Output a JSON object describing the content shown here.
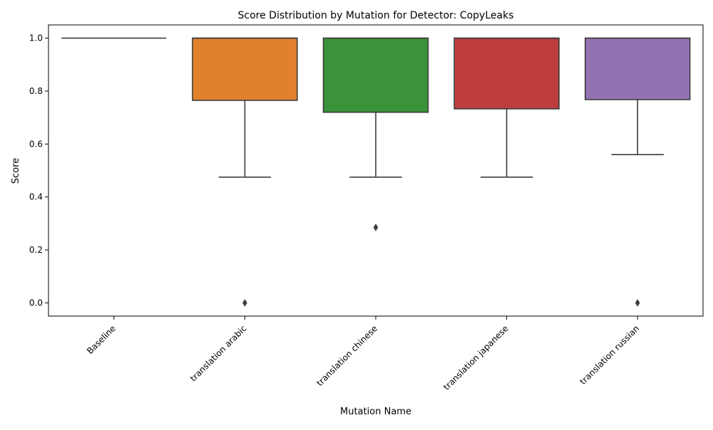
{
  "chart_data": {
    "type": "box",
    "title": "Score Distribution by Mutation for Detector: CopyLeaks",
    "xlabel": "Mutation Name",
    "ylabel": "Score",
    "ylim": [
      -0.05,
      1.05
    ],
    "yticks": [
      0.0,
      0.2,
      0.4,
      0.6,
      0.8,
      1.0
    ],
    "ytick_labels": [
      "0.0",
      "0.2",
      "0.4",
      "0.6",
      "0.8",
      "1.0"
    ],
    "grid": false,
    "categories": [
      "Baseline",
      "translation arabic",
      "translation chinese",
      "translation japanese",
      "translation russian"
    ],
    "boxes": [
      {
        "category": "Baseline",
        "whisker_low": 1.0,
        "q1": 1.0,
        "median": 1.0,
        "q3": 1.0,
        "whisker_high": 1.0,
        "outliers": [],
        "color": "#3274a1"
      },
      {
        "category": "translation arabic",
        "whisker_low": 0.475,
        "q1": 0.765,
        "median": 1.0,
        "q3": 1.0,
        "whisker_high": 1.0,
        "outliers": [
          0.0
        ],
        "color": "#e1812c"
      },
      {
        "category": "translation chinese",
        "whisker_low": 0.475,
        "q1": 0.72,
        "median": 1.0,
        "q3": 1.0,
        "whisker_high": 1.0,
        "outliers": [
          0.285
        ],
        "color": "#3a923a"
      },
      {
        "category": "translation japanese",
        "whisker_low": 0.475,
        "q1": 0.733,
        "median": 1.0,
        "q3": 1.0,
        "whisker_high": 1.0,
        "outliers": [],
        "color": "#c03d3e"
      },
      {
        "category": "translation russian",
        "whisker_low": 0.56,
        "q1": 0.768,
        "median": 1.0,
        "q3": 1.0,
        "whisker_high": 1.0,
        "outliers": [
          0.0
        ],
        "color": "#9372b2"
      }
    ]
  }
}
